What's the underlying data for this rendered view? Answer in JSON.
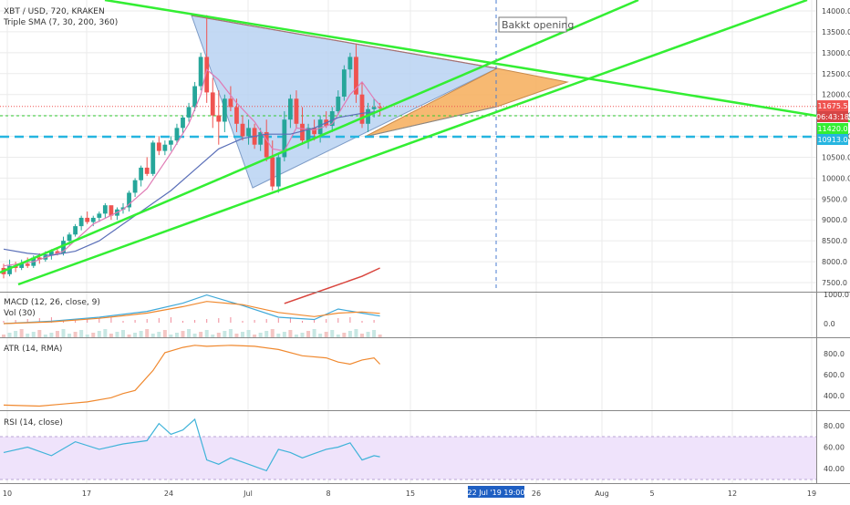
{
  "colors": {
    "up": "#26a69a",
    "down": "#ef5350",
    "trend": "#33ee33",
    "grid": "#ebebeb",
    "axisText": "#444444",
    "sma7": "#e07bb5",
    "sma30": "#5a6fb8",
    "sma200": "#d9453d",
    "macd": "#3fa9d9",
    "signal": "#f0892f",
    "atr": "#f0892f",
    "rsi": "#3fb3d9",
    "rsiBand": "#efe3fb",
    "triangleFill": "#b9d2f2",
    "wedgeFill": "#f6b163",
    "level": "#26b5e0"
  },
  "header": {
    "title": "XBT / USD, 720, KRAKEN",
    "indicator": "Triple SMA (7, 30, 200, 360)"
  },
  "annotation": {
    "event_label": "Bakkt opening"
  },
  "price_labels": {
    "last": "11675.5",
    "countdown": "06:43:18",
    "level_1": "11420.0",
    "level_2": "10913.0"
  },
  "panes": {
    "macd": "MACD (12, 26, close, 9)",
    "vol": "Vol (30)",
    "atr": "ATR (14, RMA)",
    "rsi": "RSI (14, close)"
  },
  "time_axis": {
    "ticks": [
      "10",
      "17",
      "24",
      "Jul",
      "8",
      "15",
      "26",
      "Aug",
      "5",
      "12",
      "19"
    ],
    "cursor_label": "22 Jul '19   19:00"
  },
  "chart_data": [
    {
      "type": "candlestick",
      "title": "XBT / USD, 720, KRAKEN",
      "ylim": [
        7000,
        14000
      ],
      "y_ticks": [
        7500,
        8000,
        8500,
        9000,
        9500,
        10000,
        10500,
        11000,
        11500,
        12000,
        12500,
        13000,
        13500,
        14000
      ],
      "x_ticks": [
        "10",
        "17",
        "24",
        "Jul",
        "8",
        "15",
        "26",
        "Aug",
        "5",
        "12",
        "19"
      ],
      "candles": [
        [
          7850,
          7950,
          7600,
          7700
        ],
        [
          7700,
          8050,
          7650,
          7900
        ],
        [
          7900,
          8000,
          7750,
          7850
        ],
        [
          7850,
          8050,
          7800,
          7950
        ],
        [
          7950,
          8100,
          7850,
          7900
        ],
        [
          7900,
          8150,
          7850,
          8100
        ],
        [
          8100,
          8200,
          7950,
          8050
        ],
        [
          8050,
          8250,
          8000,
          8150
        ],
        [
          8150,
          8300,
          8050,
          8250
        ],
        [
          8250,
          8350,
          8150,
          8200
        ],
        [
          8200,
          8600,
          8150,
          8500
        ],
        [
          8500,
          8700,
          8400,
          8650
        ],
        [
          8650,
          8900,
          8600,
          8850
        ],
        [
          8850,
          9100,
          8750,
          9050
        ],
        [
          9050,
          9200,
          8900,
          8950
        ],
        [
          8950,
          9100,
          8850,
          9050
        ],
        [
          9050,
          9200,
          8950,
          9150
        ],
        [
          9150,
          9400,
          9050,
          9350
        ],
        [
          9350,
          9300,
          9000,
          9100
        ],
        [
          9100,
          9300,
          9000,
          9250
        ],
        [
          9250,
          9400,
          9150,
          9300
        ],
        [
          9300,
          9700,
          9200,
          9650
        ],
        [
          9650,
          10000,
          9550,
          9950
        ],
        [
          9950,
          10300,
          9800,
          10250
        ],
        [
          10250,
          10500,
          10050,
          10100
        ],
        [
          10100,
          10900,
          10050,
          10850
        ],
        [
          10850,
          11000,
          10550,
          10650
        ],
        [
          10650,
          10900,
          10550,
          10800
        ],
        [
          10800,
          11000,
          10650,
          10900
        ],
        [
          10900,
          11300,
          10800,
          11200
        ],
        [
          11200,
          11500,
          11050,
          11450
        ],
        [
          11450,
          11800,
          11350,
          11700
        ],
        [
          11700,
          12300,
          11600,
          12200
        ],
        [
          12200,
          13000,
          12100,
          12900
        ],
        [
          12900,
          13900,
          11800,
          12050
        ],
        [
          12050,
          12400,
          11200,
          11500
        ],
        [
          11500,
          12100,
          10800,
          11350
        ],
        [
          11350,
          12000,
          11100,
          11900
        ],
        [
          11900,
          12200,
          11600,
          11700
        ],
        [
          11700,
          11900,
          11100,
          11300
        ],
        [
          11300,
          11500,
          10900,
          11000
        ],
        [
          11000,
          11400,
          10800,
          11200
        ],
        [
          11200,
          11300,
          10700,
          10800
        ],
        [
          10800,
          11200,
          10650,
          11100
        ],
        [
          11100,
          11400,
          10400,
          10500
        ],
        [
          10500,
          10900,
          9700,
          9800
        ],
        [
          9800,
          10600,
          9650,
          10500
        ],
        [
          10500,
          11600,
          10400,
          11400
        ],
        [
          11400,
          12000,
          11200,
          11900
        ],
        [
          11900,
          12100,
          11200,
          11300
        ],
        [
          11300,
          11700,
          10800,
          10900
        ],
        [
          10900,
          11300,
          10700,
          11200
        ],
        [
          11200,
          11400,
          10900,
          11050
        ],
        [
          11050,
          11500,
          10850,
          11400
        ],
        [
          11400,
          11600,
          11200,
          11250
        ],
        [
          11250,
          11700,
          11100,
          11600
        ],
        [
          11600,
          12100,
          11500,
          11950
        ],
        [
          11950,
          12700,
          11850,
          12600
        ],
        [
          12600,
          13000,
          12400,
          12900
        ],
        [
          12900,
          13200,
          11800,
          12000
        ],
        [
          12000,
          12300,
          11200,
          11300
        ],
        [
          11300,
          11800,
          11100,
          11650
        ],
        [
          11650,
          11900,
          11450,
          11700
        ],
        [
          11700,
          11800,
          11500,
          11675.5
        ]
      ],
      "sma7": [
        [
          0,
          7900
        ],
        [
          5,
          8000
        ],
        [
          10,
          8250
        ],
        [
          15,
          8900
        ],
        [
          20,
          9250
        ],
        [
          24,
          9750
        ],
        [
          28,
          10600
        ],
        [
          31,
          11300
        ],
        [
          33,
          12000
        ],
        [
          34,
          12600
        ],
        [
          36,
          12350
        ],
        [
          39,
          11800
        ],
        [
          42,
          11350
        ],
        [
          45,
          10700
        ],
        [
          47,
          10650
        ],
        [
          49,
          11200
        ],
        [
          52,
          11150
        ],
        [
          55,
          11300
        ],
        [
          58,
          12000
        ],
        [
          60,
          12300
        ],
        [
          62,
          11900
        ],
        [
          63,
          11750
        ]
      ],
      "sma30": [
        [
          0,
          8300
        ],
        [
          4,
          8200
        ],
        [
          8,
          8150
        ],
        [
          12,
          8250
        ],
        [
          16,
          8500
        ],
        [
          20,
          8900
        ],
        [
          24,
          9300
        ],
        [
          28,
          9700
        ],
        [
          32,
          10200
        ],
        [
          36,
          10700
        ],
        [
          40,
          10950
        ],
        [
          44,
          11050
        ],
        [
          48,
          11050
        ],
        [
          52,
          11200
        ],
        [
          56,
          11450
        ],
        [
          60,
          11550
        ],
        [
          63,
          11600
        ]
      ],
      "sma200": [
        [
          47,
          7000
        ],
        [
          52,
          7250
        ],
        [
          56,
          7450
        ],
        [
          60,
          7650
        ],
        [
          63,
          7850
        ]
      ]
    },
    {
      "type": "line",
      "title": "MACD (12, 26, close, 9)",
      "y_ticks": [
        0,
        1000
      ],
      "series": [
        {
          "name": "MACD",
          "x": [
            0,
            8,
            16,
            24,
            30,
            34,
            40,
            46,
            52,
            56,
            60,
            63
          ],
          "values": [
            0,
            80,
            220,
            420,
            700,
            980,
            620,
            220,
            140,
            500,
            360,
            260
          ]
        },
        {
          "name": "signal",
          "x": [
            0,
            8,
            16,
            24,
            30,
            34,
            40,
            46,
            52,
            56,
            60,
            63
          ],
          "values": [
            0,
            60,
            180,
            360,
            580,
            760,
            650,
            380,
            240,
            360,
            400,
            350
          ]
        }
      ]
    },
    {
      "type": "line",
      "title": "ATR (14, RMA)",
      "y_ticks": [
        400,
        600,
        800
      ],
      "series": [
        {
          "name": "ATR",
          "x": [
            0,
            6,
            10,
            14,
            18,
            20,
            22,
            25,
            27,
            30,
            32,
            34,
            38,
            42,
            46,
            50,
            54,
            56,
            58,
            60,
            62,
            63
          ],
          "values": [
            310,
            300,
            320,
            340,
            380,
            420,
            450,
            640,
            810,
            860,
            880,
            870,
            880,
            870,
            840,
            780,
            760,
            720,
            700,
            740,
            760,
            700
          ]
        }
      ]
    },
    {
      "type": "line",
      "title": "RSI (14, close)",
      "ylim": [
        30,
        90
      ],
      "y_ticks": [
        40,
        60,
        80
      ],
      "series": [
        {
          "name": "RSI",
          "x": [
            0,
            4,
            8,
            12,
            16,
            20,
            24,
            26,
            28,
            30,
            32,
            34,
            36,
            38,
            40,
            44,
            46,
            48,
            50,
            52,
            54,
            56,
            58,
            60,
            62,
            63
          ],
          "values": [
            55,
            60,
            52,
            65,
            58,
            63,
            66,
            82,
            72,
            76,
            86,
            48,
            44,
            50,
            46,
            38,
            58,
            55,
            50,
            54,
            58,
            60,
            64,
            48,
            52,
            51
          ]
        }
      ]
    }
  ]
}
